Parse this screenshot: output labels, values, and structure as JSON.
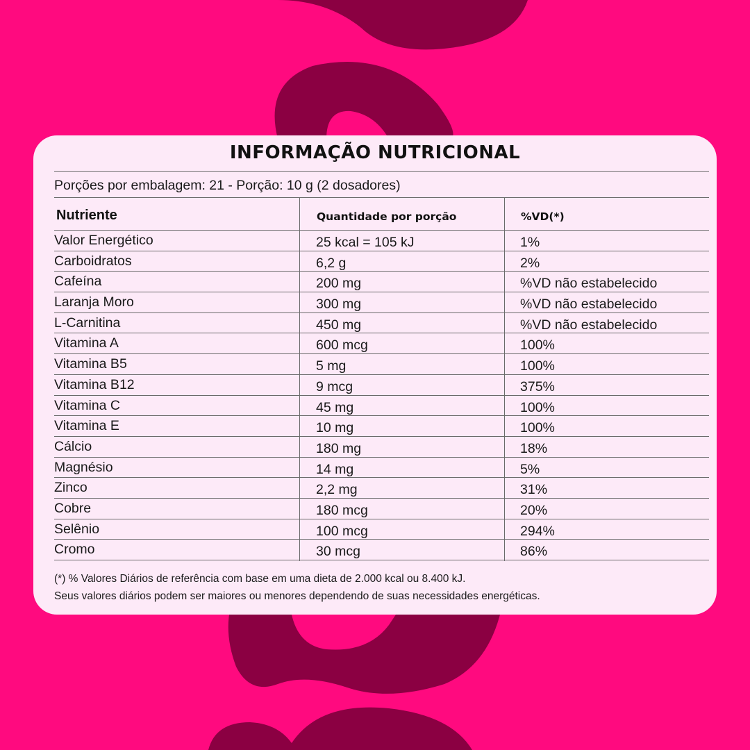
{
  "colors": {
    "background": "#ff0a7f",
    "shape": "#8b0042",
    "card": "#fdeaf8"
  },
  "title": "INFORMAÇÃO NUTRICIONAL",
  "portion_line": "Porções por embalagem: 21 -  Porção: 10 g (2 dosadores)",
  "headers": {
    "nutrient": "Nutriente",
    "quantity": "Quantidade por porção",
    "vd": "%VD(*)"
  },
  "rows": [
    {
      "nutrient": "Valor Energético",
      "quantity": "25 kcal = 105 kJ",
      "vd": "1%"
    },
    {
      "nutrient": "Carboidratos",
      "quantity": "6,2 g",
      "vd": "2%"
    },
    {
      "nutrient": "Cafeína",
      "quantity": "200 mg",
      "vd": "%VD não estabelecido"
    },
    {
      "nutrient": "Laranja Moro",
      "quantity": "300 mg",
      "vd": "%VD não estabelecido"
    },
    {
      "nutrient": "L-Carnitina",
      "quantity": "450 mg",
      "vd": "%VD não estabelecido"
    },
    {
      "nutrient": "Vitamina A",
      "quantity": "600 mcg",
      "vd": "100%"
    },
    {
      "nutrient": "Vitamina B5",
      "quantity": "5 mg",
      "vd": "100%"
    },
    {
      "nutrient": "Vitamina B12",
      "quantity": "9 mcg",
      "vd": "375%"
    },
    {
      "nutrient": "Vitamina C",
      "quantity": "45 mg",
      "vd": "100%"
    },
    {
      "nutrient": "Vitamina E",
      "quantity": "10 mg",
      "vd": "100%"
    },
    {
      "nutrient": "Cálcio",
      "quantity": "180 mg",
      "vd": "18%"
    },
    {
      "nutrient": "Magnésio",
      "quantity": "14 mg",
      "vd": "5%"
    },
    {
      "nutrient": "Zinco",
      "quantity": "2,2 mg",
      "vd": "31%"
    },
    {
      "nutrient": "Cobre",
      "quantity": "180 mcg",
      "vd": "20%"
    },
    {
      "nutrient": "Selênio",
      "quantity": "100 mcg",
      "vd": "294%"
    },
    {
      "nutrient": "Cromo",
      "quantity": "30 mcg",
      "vd": "86%"
    }
  ],
  "footnote": [
    "(*) % Valores Diários de referência com base em uma dieta de 2.000 kcal ou 8.400 kJ.",
    "Seus valores diários podem ser maiores ou menores dependendo de suas necessidades energéticas."
  ]
}
